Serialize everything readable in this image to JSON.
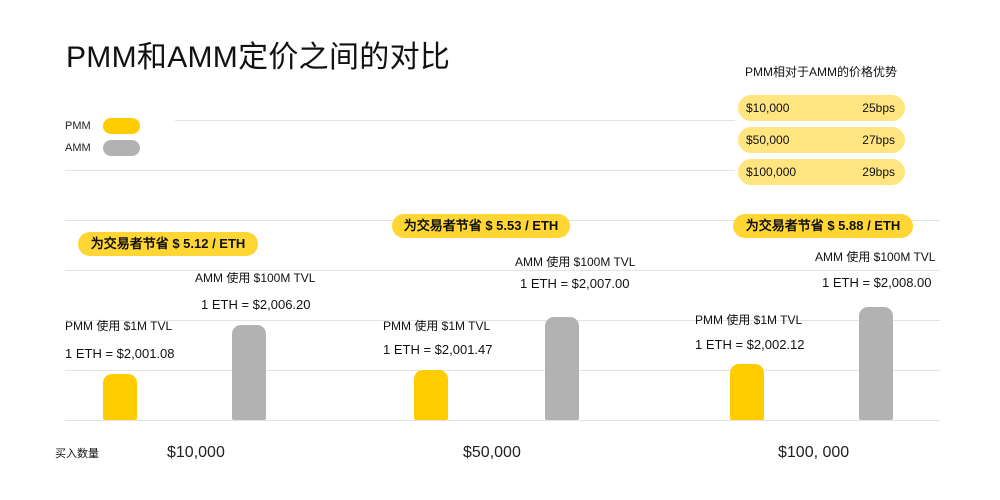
{
  "chart_data": {
    "type": "bar",
    "title": "PMM和AMM定价之间的对比",
    "xlabel": "买入数量",
    "categories": [
      "$10,000",
      "$50,000",
      "$100, 000"
    ],
    "series": [
      {
        "name": "PMM",
        "color": "#FFCC00",
        "values": [
          2001.08,
          2001.47,
          2002.12
        ]
      },
      {
        "name": "AMM",
        "color": "#B2B2B2",
        "values": [
          2006.2,
          2007.0,
          2008.0
        ]
      }
    ],
    "annotations": [
      {
        "savings": "为交易者节省 $ 5.12 / ETH",
        "pmm_label": "PMM 使用 $1M TVL",
        "pmm_price": "1 ETH = $2,001.08",
        "amm_label": "AMM 使用 $100M TVL",
        "amm_price": "1 ETH = $2,006.20"
      },
      {
        "savings": "为交易者节省 $ 5.53 / ETH",
        "pmm_label": "PMM 使用 $1M TVL",
        "pmm_price": "1 ETH = $2,001.47",
        "amm_label": "AMM 使用 $100M TVL",
        "amm_price": "1 ETH = $2,007.00"
      },
      {
        "savings": "为交易者节省 $ 5.88 / ETH",
        "pmm_label": "PMM 使用 $1M TVL",
        "pmm_price": "1 ETH = $2,002.12",
        "amm_label": "AMM 使用 $100M TVL",
        "amm_price": "1 ETH = $2,008.00"
      }
    ],
    "legend_position": "top-left",
    "grid": true
  },
  "price_advantage": {
    "title": "PMM相对于AMM的价格优势",
    "rows": [
      {
        "amount": "$10,000",
        "advantage": "25bps"
      },
      {
        "amount": "$50,000",
        "advantage": "27bps"
      },
      {
        "amount": "$100,000",
        "advantage": "29bps"
      }
    ]
  },
  "colors": {
    "callout": "#FFD633",
    "advantage_row": "#FFE57F",
    "text": "#111111",
    "grid": "#E3E3E3"
  }
}
